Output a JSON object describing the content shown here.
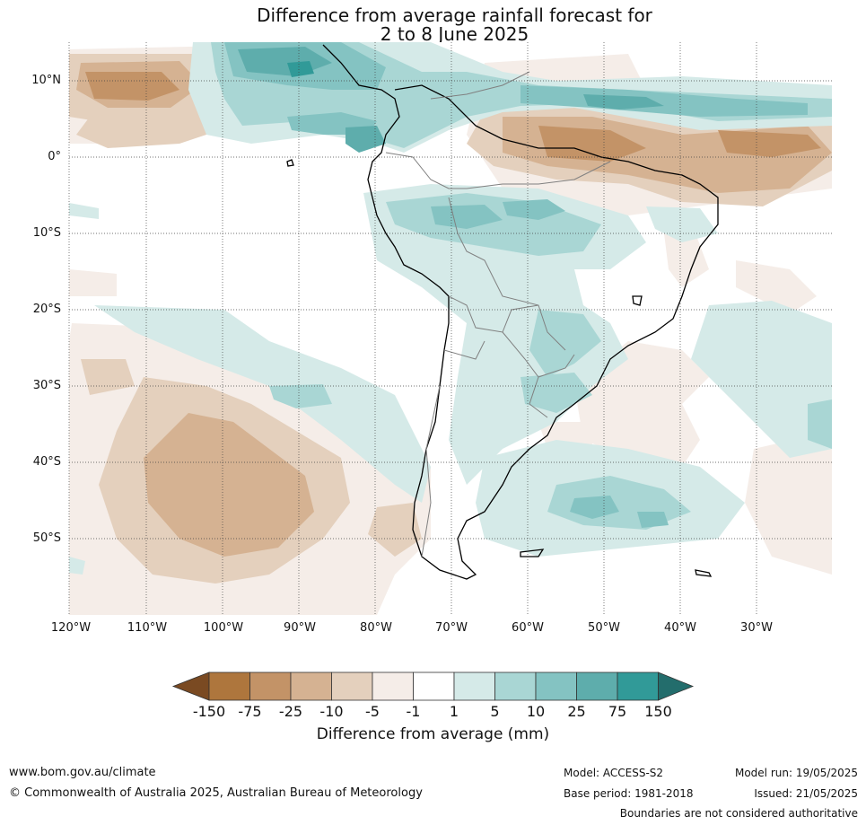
{
  "title": {
    "line1": "Difference from average rainfall forecast for",
    "line2": "2 to 8 June 2025"
  },
  "map": {
    "lat_labels": [
      "10°N",
      "0°",
      "10°S",
      "20°S",
      "30°S",
      "40°S",
      "50°S"
    ],
    "lon_labels": [
      "120°W",
      "110°W",
      "100°W",
      "90°W",
      "80°W",
      "70°W",
      "60°W",
      "50°W",
      "40°W",
      "30°W"
    ]
  },
  "colorbar": {
    "ticks": [
      "-150",
      "-75",
      "-25",
      "-10",
      "-5",
      "-1",
      "1",
      "5",
      "10",
      "25",
      "75",
      "150"
    ],
    "colors": [
      "#7a4a22",
      "#ae763d",
      "#c39367",
      "#d5b292",
      "#e4d0bd",
      "#f5ede8",
      "#ffffff",
      "#d5eae8",
      "#a9d6d4",
      "#84c3c2",
      "#5eadac",
      "#319a98",
      "#236d6c"
    ],
    "label": "Difference from average (mm)"
  },
  "footer": {
    "website": "www.bom.gov.au/climate",
    "copyright": "© Commonwealth of Australia 2025, Australian Bureau of Meteorology",
    "model": "Model: ACCESS-S2",
    "base_period": "Base period: 1981-2018",
    "model_run": "Model run: 19/05/2025",
    "issued": "Issued: 21/05/2025",
    "disclaimer": "Boundaries are not considered authoritative"
  }
}
